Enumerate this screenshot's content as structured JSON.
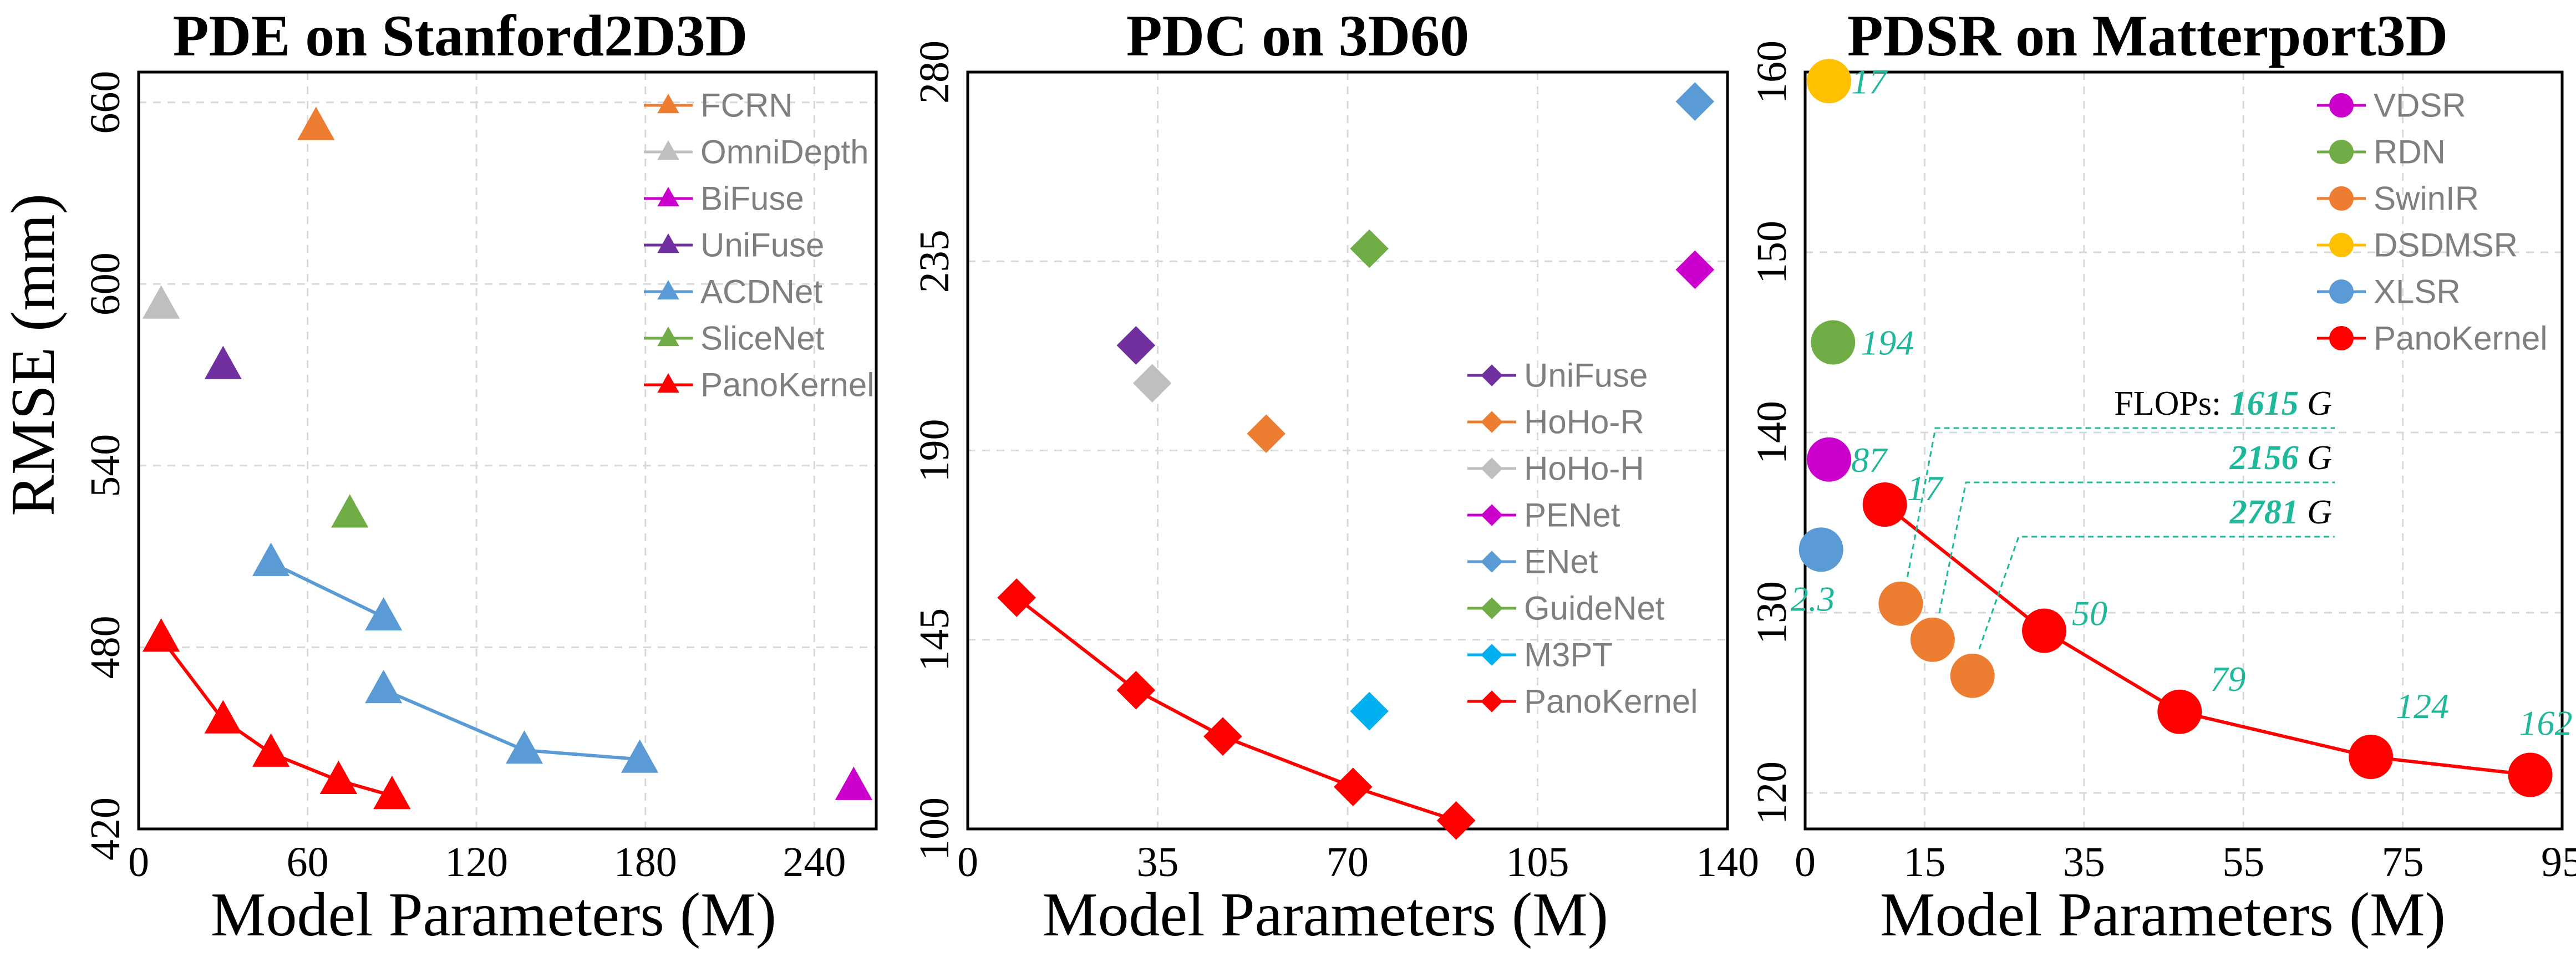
{
  "colors": {
    "red": "#ff0000",
    "orange": "#ed7d31",
    "gray": "#bfbfbf",
    "magenta": "#cc00cc",
    "purple": "#7030a0",
    "blue": "#5b9bd5",
    "green": "#70ad47",
    "gold": "#ffc000",
    "cyan": "#00b0f0",
    "teal": "#1fb89a"
  },
  "chart_data": [
    {
      "type": "scatter",
      "title": "PDE on Stanford2D3D",
      "xlabel": "Model Parameters (M)",
      "ylabel": "RMSE (mm)",
      "xlim": [
        0,
        262
      ],
      "ylim": [
        420,
        670
      ],
      "xticks": [
        0,
        60,
        120,
        180,
        240
      ],
      "yticks": [
        420,
        480,
        540,
        600,
        660
      ],
      "marker": "triangle",
      "legend_position": "top-right",
      "grid": true,
      "series": [
        {
          "name": "FCRN",
          "color": "#ed7d31",
          "points": [
            [
              63,
              652
            ]
          ]
        },
        {
          "name": "OmniDepth",
          "color": "#bfbfbf",
          "points": [
            [
              8,
              593
            ]
          ]
        },
        {
          "name": "BiFuse",
          "color": "#cc00cc",
          "points": [
            [
              254,
              434
            ]
          ]
        },
        {
          "name": "UniFuse",
          "color": "#7030a0",
          "points": [
            [
              30,
              573
            ]
          ]
        },
        {
          "name": "ACDNet",
          "color": "#5b9bd5",
          "connected": true,
          "points": [
            [
              47,
              508
            ],
            [
              87,
              490
            ]
          ],
          "points_b": [
            [
              87,
              466
            ],
            [
              137,
              446
            ],
            [
              178,
              443
            ]
          ]
        },
        {
          "name": "SliceNet",
          "color": "#70ad47",
          "points": [
            [
              75,
              524
            ]
          ]
        },
        {
          "name": "PanoKernel",
          "color": "#ff0000",
          "connected": true,
          "points": [
            [
              8,
              483
            ],
            [
              30,
              456
            ],
            [
              47,
              445
            ],
            [
              71,
              436
            ],
            [
              90,
              431
            ]
          ]
        }
      ]
    },
    {
      "type": "scatter",
      "title": "PDC on 3D60",
      "xlabel": "Model Parameters (M)",
      "ylabel": "",
      "xlim": [
        0,
        140
      ],
      "ylim": [
        100,
        280
      ],
      "xticks": [
        0,
        35,
        70,
        105,
        140
      ],
      "yticks": [
        100,
        145,
        190,
        235,
        280
      ],
      "marker": "diamond",
      "legend_position": "center-right",
      "grid": true,
      "series": [
        {
          "name": "UniFuse",
          "color": "#7030a0",
          "points": [
            [
              31,
              215
            ]
          ]
        },
        {
          "name": "HoHo-R",
          "color": "#ed7d31",
          "points": [
            [
              55,
              194
            ]
          ]
        },
        {
          "name": "HoHo-H",
          "color": "#bfbfbf",
          "points": [
            [
              34,
              206
            ]
          ]
        },
        {
          "name": "PENet",
          "color": "#cc00cc",
          "points": [
            [
              134,
              233
            ]
          ]
        },
        {
          "name": "ENet",
          "color": "#5b9bd5",
          "points": [
            [
              134,
              273
            ]
          ]
        },
        {
          "name": "GuideNet",
          "color": "#70ad47",
          "points": [
            [
              74,
              238
            ]
          ]
        },
        {
          "name": "M3PT",
          "color": "#00b0f0",
          "points": [
            [
              74,
              128
            ]
          ]
        },
        {
          "name": "PanoKernel",
          "color": "#ff0000",
          "connected": true,
          "points": [
            [
              9,
              155
            ],
            [
              31,
              133
            ],
            [
              47,
              122
            ],
            [
              71,
              110
            ],
            [
              90,
              102
            ]
          ]
        }
      ]
    },
    {
      "type": "scatter",
      "title": "PDSR on Matterport3D",
      "xlabel": "Model Parameters (M)",
      "ylabel": "",
      "xlim": [
        0,
        95
      ],
      "ylim": [
        118,
        160
      ],
      "xticks": [
        0,
        15,
        35,
        55,
        75,
        95
      ],
      "yticks": [
        120,
        130,
        140,
        150,
        160
      ],
      "marker": "circle",
      "legend_position": "top-right",
      "grid": true,
      "series": [
        {
          "name": "VDSR",
          "color": "#cc00cc",
          "points": [
            [
              3,
              138.5
            ]
          ]
        },
        {
          "name": "RDN",
          "color": "#70ad47",
          "points": [
            [
              3.5,
              145
            ]
          ]
        },
        {
          "name": "SwinIR",
          "color": "#ed7d31",
          "points": [
            [
              12,
              130.5
            ],
            [
              16,
              128.5
            ],
            [
              21,
              126.5
            ]
          ]
        },
        {
          "name": "DSDMSR",
          "color": "#ffc000",
          "points": [
            [
              3,
              159.5
            ]
          ]
        },
        {
          "name": "XLSR",
          "color": "#5b9bd5",
          "points": [
            [
              2,
              133.5
            ]
          ]
        },
        {
          "name": "PanoKernel",
          "color": "#ff0000",
          "connected": true,
          "points": [
            [
              10,
              136
            ],
            [
              30,
              129
            ],
            [
              47,
              124.5
            ],
            [
              71,
              122
            ],
            [
              91,
              121
            ]
          ]
        }
      ],
      "point_labels": [
        "17",
        "194",
        "87",
        "2.3",
        "17",
        "50",
        "79",
        "124",
        "162"
      ],
      "flops": {
        "prefix": "FLOPs:",
        "unit": "G",
        "values": [
          "1615",
          "2156",
          "2781"
        ]
      }
    }
  ]
}
